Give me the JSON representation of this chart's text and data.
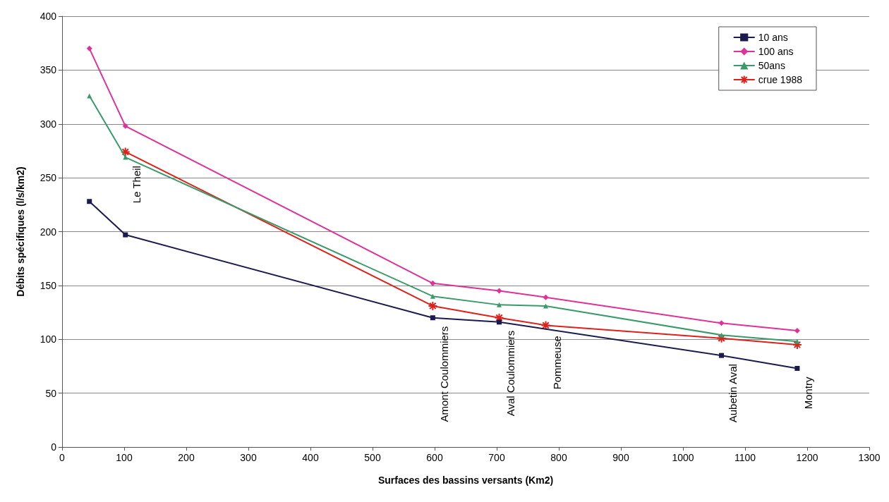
{
  "chart_data": {
    "type": "line",
    "xlabel": "Surfaces des bassins versants (Km2)",
    "ylabel": "Débits spécifiques (l/s/km2)",
    "xlim": [
      0,
      1300
    ],
    "xticks": [
      0,
      100,
      200,
      300,
      400,
      500,
      600,
      700,
      800,
      900,
      1000,
      1100,
      1200,
      1300
    ],
    "ylim": [
      0,
      400
    ],
    "yticks": [
      0,
      50,
      100,
      150,
      200,
      250,
      300,
      350,
      400
    ],
    "grid": "y",
    "legend": "top right",
    "line_style": "solid",
    "series": [
      {
        "name": "10 ans",
        "color": "#1a1a4e",
        "marker": "square",
        "x": [
          44,
          102,
          597,
          704,
          1062,
          1184
        ],
        "values": [
          228,
          197,
          120,
          116,
          85,
          73
        ]
      },
      {
        "name": "100 ans",
        "color": "#e0309a",
        "marker": "diamond",
        "x": [
          44,
          102,
          597,
          704,
          779,
          1062,
          1184
        ],
        "values": [
          370,
          298,
          152,
          145,
          139,
          115,
          108
        ]
      },
      {
        "name": "50ans",
        "color": "#3a9a6a",
        "marker": "triangle",
        "x": [
          44,
          102,
          597,
          704,
          779,
          1062,
          1184
        ],
        "values": [
          326,
          269,
          140,
          132,
          131,
          104,
          98
        ]
      },
      {
        "name": "crue 1988",
        "color": "#e0201a",
        "marker": "cross",
        "x": [
          102,
          597,
          704,
          779,
          1062,
          1184
        ],
        "values": [
          274,
          131,
          120,
          113,
          101,
          95
        ]
      }
    ],
    "annotations": [
      {
        "text": "Le Theil",
        "x": 102,
        "y": 269
      },
      {
        "text": "Amont Coulommiers",
        "x": 597,
        "y": 120
      },
      {
        "text": "Aval Coulommiers",
        "x": 704,
        "y": 116
      },
      {
        "text": "Pommeuse",
        "x": 779,
        "y": 111
      },
      {
        "text": "Aubetin Aval",
        "x": 1062,
        "y": 85
      },
      {
        "text": "Montry",
        "x": 1184,
        "y": 73
      }
    ]
  }
}
